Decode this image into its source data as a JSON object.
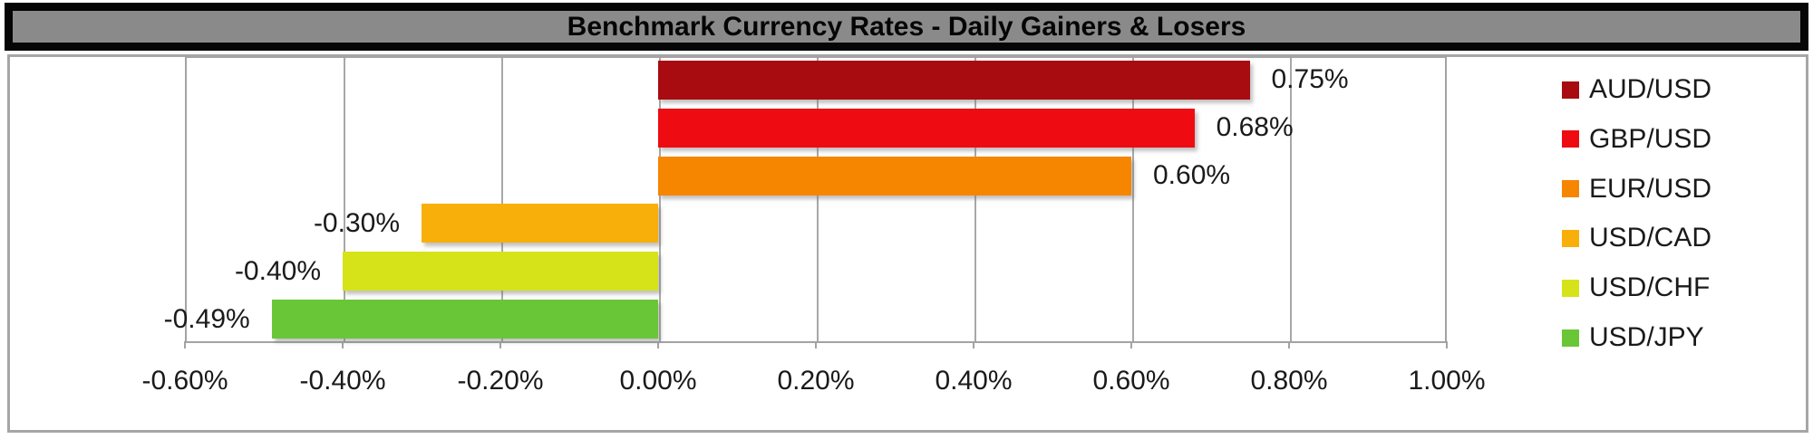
{
  "title_banner": {
    "text": "Benchmark Currency Rates - Daily Gainers & Losers",
    "background": "#8a8a8a",
    "border_color": "#060606"
  },
  "chart_data": {
    "type": "bar",
    "orientation": "horizontal",
    "title": "Benchmark Currency Rates - Daily Gainers & Losers",
    "categories": [
      "AUD/USD",
      "GBP/USD",
      "EUR/USD",
      "USD/CAD",
      "USD/CHF",
      "USD/JPY"
    ],
    "values": [
      0.75,
      0.68,
      0.6,
      -0.3,
      -0.4,
      -0.49
    ],
    "value_labels": [
      "0.75%",
      "0.68%",
      "0.60%",
      "-0.30%",
      "-0.40%",
      "-0.49%"
    ],
    "bar_colors": [
      "#a80c10",
      "#ee0c12",
      "#f68500",
      "#f9af0a",
      "#d5e318",
      "#69c636"
    ],
    "x_tick_labels": [
      "-0.60%",
      "-0.40%",
      "-0.20%",
      "0.00%",
      "0.20%",
      "0.40%",
      "0.60%",
      "0.80%",
      "1.00%"
    ],
    "x_ticks": [
      -0.6,
      -0.4,
      -0.2,
      0.0,
      0.2,
      0.4,
      0.6,
      0.8,
      1.0
    ],
    "xlim": [
      -0.6,
      1.0
    ],
    "grid": true,
    "legend_position": "right",
    "legend": [
      "AUD/USD",
      "GBP/USD",
      "EUR/USD",
      "USD/CAD",
      "USD/CHF",
      "USD/JPY"
    ]
  },
  "colors": {
    "gridline": "#a8a8a8",
    "frame_border": "#a6a6a6",
    "text": "#1a1a1a"
  }
}
